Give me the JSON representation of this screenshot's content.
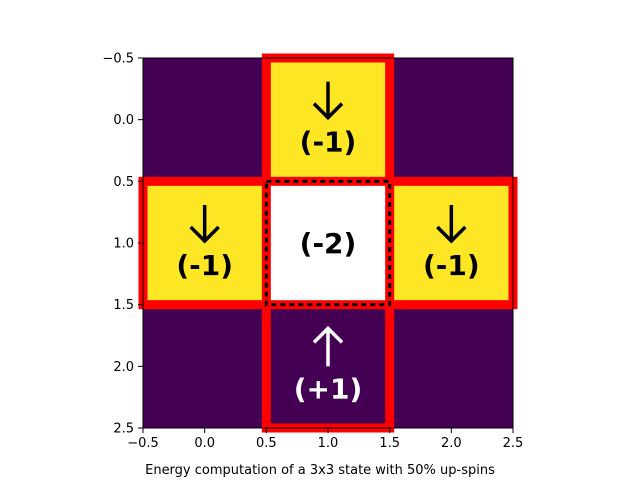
{
  "chart_data": {
    "type": "heatmap",
    "title": "",
    "xlabel": "",
    "ylabel": "",
    "xlim": [
      -0.5,
      2.5
    ],
    "ylim": [
      2.5,
      -0.5
    ],
    "xticks": [
      -0.5,
      0.0,
      0.5,
      1.0,
      1.5,
      2.0,
      2.5
    ],
    "xtick_labels": [
      "−0.5",
      "0.0",
      "0.5",
      "1.0",
      "1.5",
      "2.0",
      "2.5"
    ],
    "yticks": [
      -0.5,
      0.0,
      0.5,
      1.0,
      1.5,
      2.0,
      2.5
    ],
    "ytick_labels": [
      "−0.5",
      "0.0",
      "0.5",
      "1.0",
      "1.5",
      "2.0",
      "2.5"
    ],
    "grid": false,
    "colors": {
      "up": "#440154",
      "down": "#fde725",
      "center": "#ffffff",
      "neighbor_outline": "#ff0000",
      "center_outline": "#000000"
    },
    "cells": [
      {
        "row": 0,
        "col": 0,
        "spin": "up",
        "arrow": "",
        "label": ""
      },
      {
        "row": 0,
        "col": 1,
        "spin": "down",
        "arrow": "↓",
        "label": "(-1)",
        "neighbor": true
      },
      {
        "row": 0,
        "col": 2,
        "spin": "up",
        "arrow": "",
        "label": ""
      },
      {
        "row": 1,
        "col": 0,
        "spin": "down",
        "arrow": "↓",
        "label": "(-1)",
        "neighbor": true
      },
      {
        "row": 1,
        "col": 1,
        "spin": "center",
        "arrow": "",
        "label": "(-2)",
        "center": true
      },
      {
        "row": 1,
        "col": 2,
        "spin": "down",
        "arrow": "↓",
        "label": "(-1)",
        "neighbor": true
      },
      {
        "row": 2,
        "col": 0,
        "spin": "up",
        "arrow": "",
        "label": ""
      },
      {
        "row": 2,
        "col": 1,
        "spin": "up",
        "arrow": "↑",
        "label": "(+1)",
        "neighbor": true
      },
      {
        "row": 2,
        "col": 2,
        "spin": "up",
        "arrow": "",
        "label": ""
      }
    ],
    "caption": "Energy computation of a 3x3 state with 50% up-spins"
  }
}
